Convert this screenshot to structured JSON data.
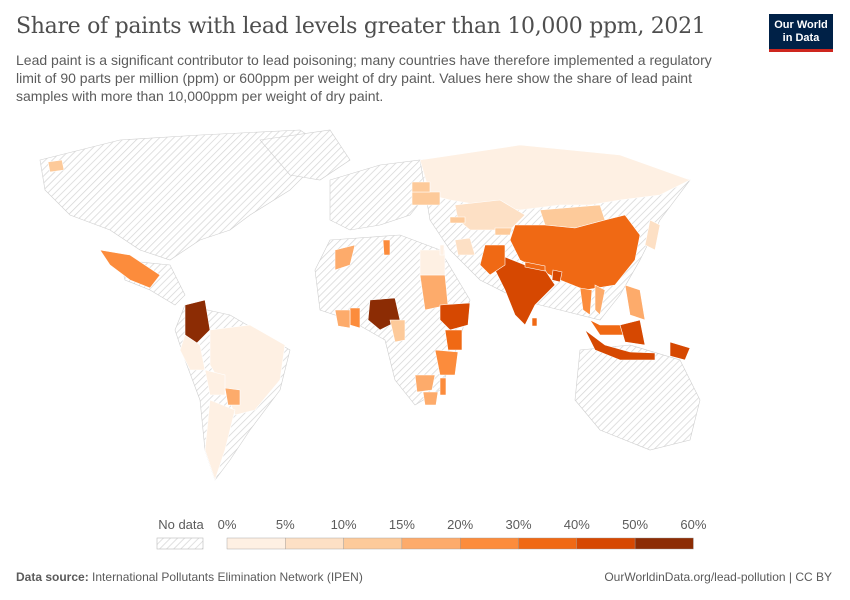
{
  "header": {
    "title": "Share of paints with lead levels greater than 10,000 ppm, 2021",
    "subtitle": "Lead paint is a significant contributor to lead poisoning; many countries have therefore implemented a regulatory limit of 90 parts per million (ppm) or 600ppm per weight of dry paint. Values here show the share of lead paint samples with more than 10,000ppm per weight of dry paint.",
    "logo": "Our World in Data"
  },
  "legend": {
    "no_data_label": "No data",
    "bins": [
      "0%",
      "5%",
      "10%",
      "15%",
      "20%",
      "30%",
      "40%",
      "50%",
      "60%"
    ],
    "colors": [
      "#fef0e3",
      "#fde0c5",
      "#fdca9a",
      "#fdab6b",
      "#fc8c3c",
      "#f06914",
      "#d64801",
      "#8c2c04"
    ],
    "no_data_color": "#e8e8e8"
  },
  "map": {
    "countries": [
      {
        "name": "Russia",
        "value": 3
      },
      {
        "name": "Kazakhstan",
        "value": 8
      },
      {
        "name": "Mongolia",
        "value": 12
      },
      {
        "name": "China",
        "value": 35
      },
      {
        "name": "India",
        "value": 45
      },
      {
        "name": "Nepal",
        "value": 35
      },
      {
        "name": "Bangladesh",
        "value": 45
      },
      {
        "name": "Thailand",
        "value": 20
      },
      {
        "name": "Vietnam",
        "value": 15
      },
      {
        "name": "Philippines",
        "value": 15
      },
      {
        "name": "Malaysia",
        "value": 35
      },
      {
        "name": "Indonesia",
        "value": 45
      },
      {
        "name": "Papua New Guinea",
        "value": 45
      },
      {
        "name": "Pakistan",
        "value": 30
      },
      {
        "name": "Kyrgyzstan",
        "value": 12
      },
      {
        "name": "Japan",
        "value": 5
      },
      {
        "name": "Mexico",
        "value": 25
      },
      {
        "name": "Colombia",
        "value": 55
      },
      {
        "name": "Brazil",
        "value": 3
      },
      {
        "name": "Peru",
        "value": 3
      },
      {
        "name": "Argentina",
        "value": 3
      },
      {
        "name": "Paraguay",
        "value": 15
      },
      {
        "name": "Bolivia",
        "value": 3
      },
      {
        "name": "Nigeria",
        "value": 55
      },
      {
        "name": "Ghana",
        "value": 20
      },
      {
        "name": "Ivory Coast",
        "value": 15
      },
      {
        "name": "Cameroon",
        "value": 10
      },
      {
        "name": "Sudan",
        "value": 15
      },
      {
        "name": "Ethiopia",
        "value": 45
      },
      {
        "name": "Kenya",
        "value": 30
      },
      {
        "name": "Tanzania",
        "value": 25
      },
      {
        "name": "Zambia",
        "value": 15
      },
      {
        "name": "Malawi",
        "value": 20
      },
      {
        "name": "Zimbabwe",
        "value": 15
      },
      {
        "name": "Egypt",
        "value": 3
      },
      {
        "name": "Morocco",
        "value": 15
      },
      {
        "name": "Tunisia",
        "value": 20
      },
      {
        "name": "Ukraine",
        "value": 12
      },
      {
        "name": "Belarus",
        "value": 10
      },
      {
        "name": "Georgia",
        "value": 10
      },
      {
        "name": "Israel",
        "value": 3
      },
      {
        "name": "Iraq",
        "value": 5
      },
      {
        "name": "Sri Lanka",
        "value": 30
      },
      {
        "name": "Iceland",
        "value": 10
      }
    ]
  },
  "footer": {
    "source_label": "Data source:",
    "source": "International Pollutants Elimination Network (IPEN)",
    "url_license": "OurWorldinData.org/lead-pollution | CC BY"
  }
}
